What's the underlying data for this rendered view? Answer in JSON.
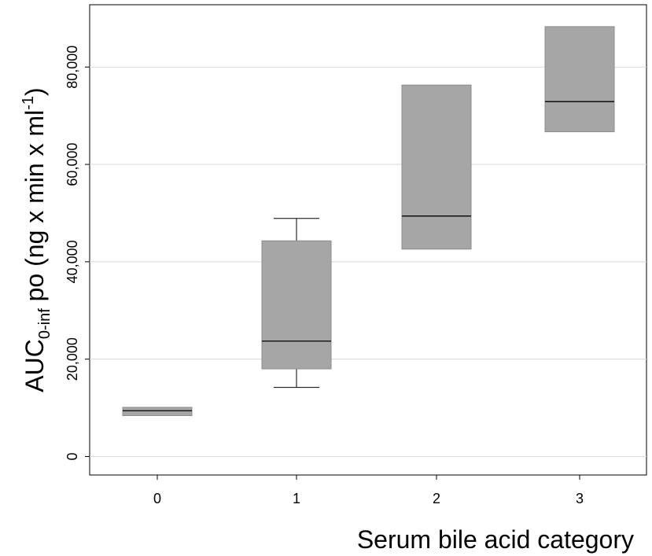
{
  "chart_data": {
    "type": "box",
    "categories": [
      "0",
      "1",
      "2",
      "3"
    ],
    "boxes": [
      {
        "category": "0",
        "whisker_low": 8400,
        "q1": 8400,
        "median": 9400,
        "q3": 10100,
        "whisker_high": 10100
      },
      {
        "category": "1",
        "whisker_low": 14200,
        "q1": 18000,
        "median": 23700,
        "q3": 44300,
        "whisker_high": 48900
      },
      {
        "category": "2",
        "whisker_low": 42600,
        "q1": 42600,
        "median": 49400,
        "q3": 76300,
        "whisker_high": 76300
      },
      {
        "category": "3",
        "whisker_low": 66700,
        "q1": 66700,
        "median": 72900,
        "q3": 88300,
        "whisker_high": 88300
      }
    ],
    "y_ticks": [
      {
        "value": 0,
        "label": "0"
      },
      {
        "value": 20000,
        "label": "20,000"
      },
      {
        "value": 40000,
        "label": "40,000"
      },
      {
        "value": 60000,
        "label": "60,000"
      },
      {
        "value": 80000,
        "label": "80,000"
      }
    ],
    "ylim": [
      -3800,
      92800
    ],
    "xlabel": "Serum bile acid category",
    "ylabel": {
      "main": "AUC",
      "sub": "0-inf",
      "middle": " po (ng x min x ml",
      "sup": "-1",
      "end": ")"
    },
    "grid": true,
    "colors": {
      "box_fill": "#a6a6a6",
      "box_stroke": "#8c8c8c",
      "median": "#000000",
      "grid": "#d9d9d9",
      "axis": "#000000"
    }
  }
}
